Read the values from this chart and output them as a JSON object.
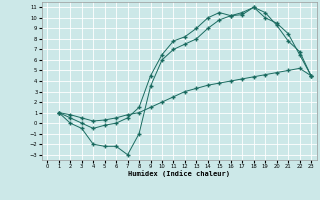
{
  "xlabel": "Humidex (Indice chaleur)",
  "bg_color": "#cce8e8",
  "grid_color": "#ffffff",
  "line_color": "#1a6b60",
  "marker": "+",
  "xlim": [
    -0.5,
    23.5
  ],
  "ylim": [
    -3.5,
    11.5
  ],
  "xticks": [
    0,
    1,
    2,
    3,
    4,
    5,
    6,
    7,
    8,
    9,
    10,
    11,
    12,
    13,
    14,
    15,
    16,
    17,
    18,
    19,
    20,
    21,
    22,
    23
  ],
  "yticks": [
    -3,
    -2,
    -1,
    0,
    1,
    2,
    3,
    4,
    5,
    6,
    7,
    8,
    9,
    10,
    11
  ],
  "curve1_x": [
    1,
    2,
    3,
    4,
    5,
    6,
    7,
    8,
    9,
    10,
    11,
    12,
    13,
    14,
    15,
    16,
    17,
    18,
    19,
    20,
    21,
    22,
    23
  ],
  "curve1_y": [
    1.0,
    0.0,
    -0.5,
    -2.0,
    -2.2,
    -2.2,
    -3.0,
    -1.0,
    3.5,
    6.0,
    7.0,
    7.5,
    8.0,
    9.0,
    9.8,
    10.2,
    10.3,
    11.0,
    10.0,
    9.5,
    8.5,
    6.5,
    4.5
  ],
  "curve2_x": [
    1,
    2,
    3,
    4,
    5,
    6,
    7,
    8,
    9,
    10,
    11,
    12,
    13,
    14,
    15,
    16,
    17,
    18,
    19,
    20,
    21,
    22,
    23
  ],
  "curve2_y": [
    1.0,
    0.8,
    0.5,
    0.2,
    0.3,
    0.5,
    0.8,
    1.0,
    1.5,
    2.0,
    2.5,
    3.0,
    3.3,
    3.6,
    3.8,
    4.0,
    4.2,
    4.4,
    4.6,
    4.8,
    5.0,
    5.2,
    4.5
  ],
  "curve3_x": [
    1,
    2,
    3,
    4,
    5,
    6,
    7,
    8,
    9,
    10,
    11,
    12,
    13,
    14,
    15,
    16,
    17,
    18,
    19,
    20,
    21,
    22,
    23
  ],
  "curve3_y": [
    1.0,
    0.5,
    0.0,
    -0.5,
    -0.2,
    0.0,
    0.5,
    1.5,
    4.5,
    6.5,
    7.8,
    8.2,
    9.0,
    10.0,
    10.5,
    10.2,
    10.5,
    11.0,
    10.5,
    9.3,
    7.8,
    6.8,
    4.5
  ]
}
